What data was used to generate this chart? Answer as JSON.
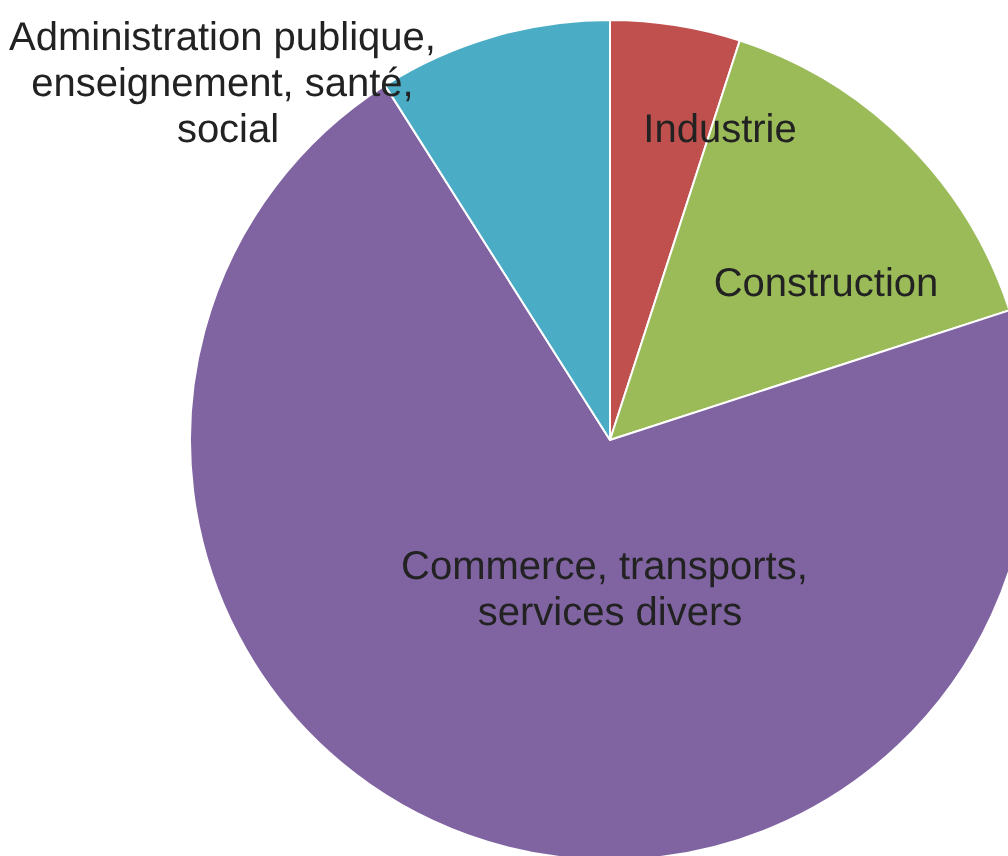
{
  "chart_data": {
    "type": "pie",
    "categories": [
      "Industrie",
      "Construction",
      "Commerce, transports, services divers",
      "Administration publique, enseignement, santé, social"
    ],
    "values": [
      5,
      15,
      71,
      9
    ],
    "colors": [
      "#c0504d",
      "#9bbb59",
      "#8064a2",
      "#4bacc6"
    ],
    "legend": false
  }
}
